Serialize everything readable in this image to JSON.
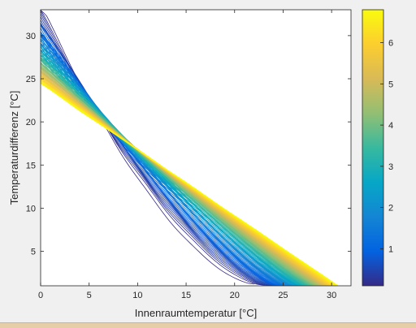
{
  "chart_data": {
    "type": "line",
    "subtype": "contour",
    "title": "",
    "xlabel": "Innenraumtemperatur [°C]",
    "ylabel": "Temperaturdifferenz [°C]",
    "xlim": [
      0,
      32
    ],
    "ylim": [
      1,
      33
    ],
    "xticks": [
      0,
      5,
      10,
      15,
      20,
      25,
      30
    ],
    "yticks": [
      5,
      10,
      15,
      20,
      25,
      30
    ],
    "grid": false,
    "colormap": "parula",
    "colorbar": {
      "position": "right",
      "limits": [
        0.1,
        6.8
      ],
      "ticks": [
        1,
        2,
        3,
        4,
        5,
        6
      ]
    },
    "level_count": 110,
    "boundary": {
      "description": "upper-right edge of the filled region is the line y = 33 - x",
      "intercept": 33,
      "slope": -1
    }
  },
  "colors": {
    "figure_background": "#f0f0f0",
    "axes_background": "#ffffff",
    "parula_stops": [
      "#352a87",
      "#0363e1",
      "#1485d4",
      "#06a7c6",
      "#38b99e",
      "#92bf73",
      "#d9ba56",
      "#fcce2e",
      "#f9fb0e"
    ]
  }
}
